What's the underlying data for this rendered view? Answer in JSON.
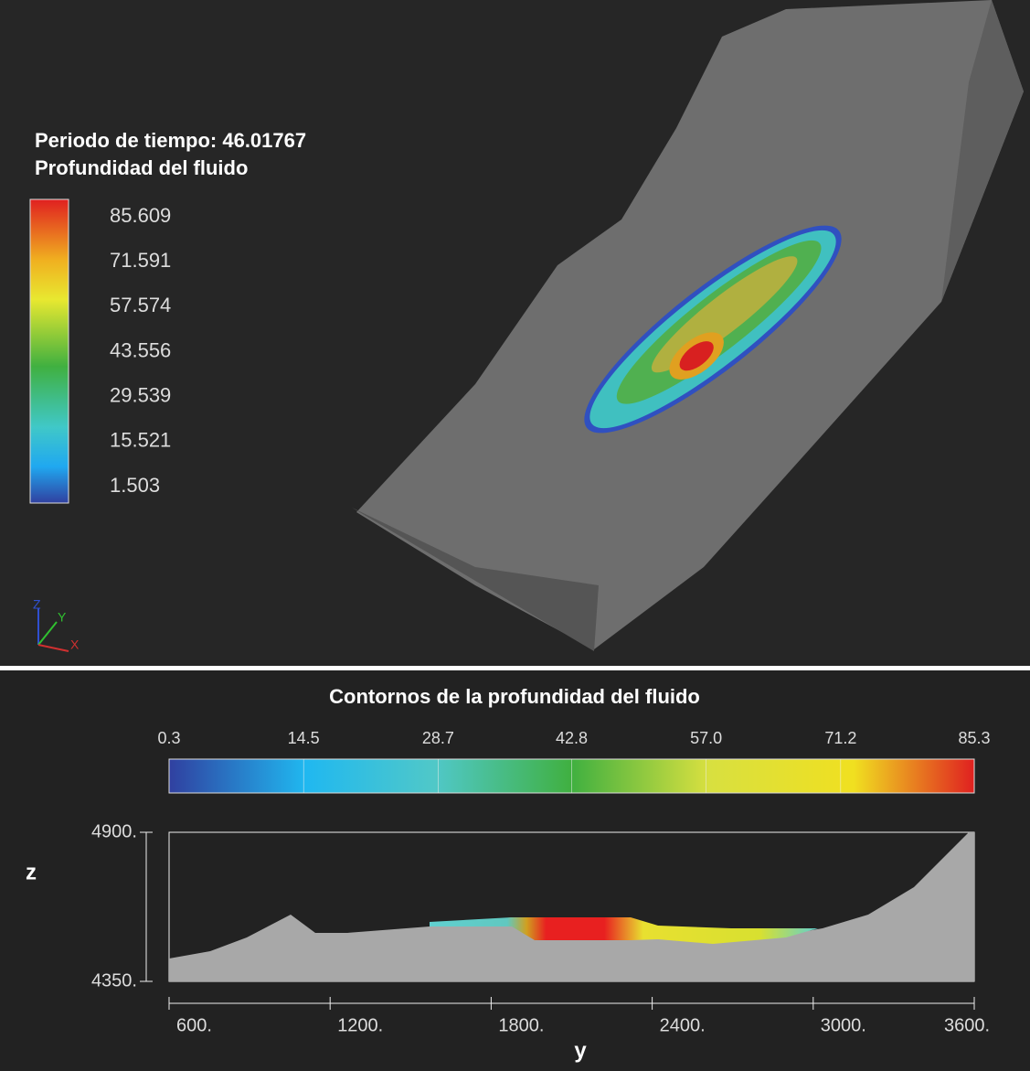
{
  "top_panel": {
    "title": "Periodo de tiempo: 46.01767",
    "subtitle": "Profundidad del fluido",
    "colorbar_labels": [
      85.609,
      71.591,
      57.574,
      43.556,
      29.539,
      15.521,
      1.503
    ],
    "axis_icon": [
      "Z",
      "Y",
      "X"
    ]
  },
  "bottom_panel": {
    "title": "Contornos de la profundidad del fluido",
    "colorbar_labels": [
      0.3,
      14.5,
      28.7,
      42.8,
      {
        "value": 57,
        "label": "57.0"
      },
      71.2,
      85.3
    ],
    "xlabel": "y",
    "ylabel": "z",
    "xlim": [
      600,
      3600
    ],
    "ylim": [
      4350,
      4900
    ],
    "xticks": [
      {
        "value": 600,
        "label": "600."
      },
      {
        "value": 1200,
        "label": "1200."
      },
      {
        "value": 1800,
        "label": "1800."
      },
      {
        "value": 2400,
        "label": "2400."
      },
      {
        "value": 3000,
        "label": "3000."
      },
      {
        "value": 3600,
        "label": "3600."
      }
    ],
    "yticks": [
      {
        "value": 4350,
        "label": "4350."
      },
      {
        "value": 4900,
        "label": "4900."
      }
    ]
  }
}
